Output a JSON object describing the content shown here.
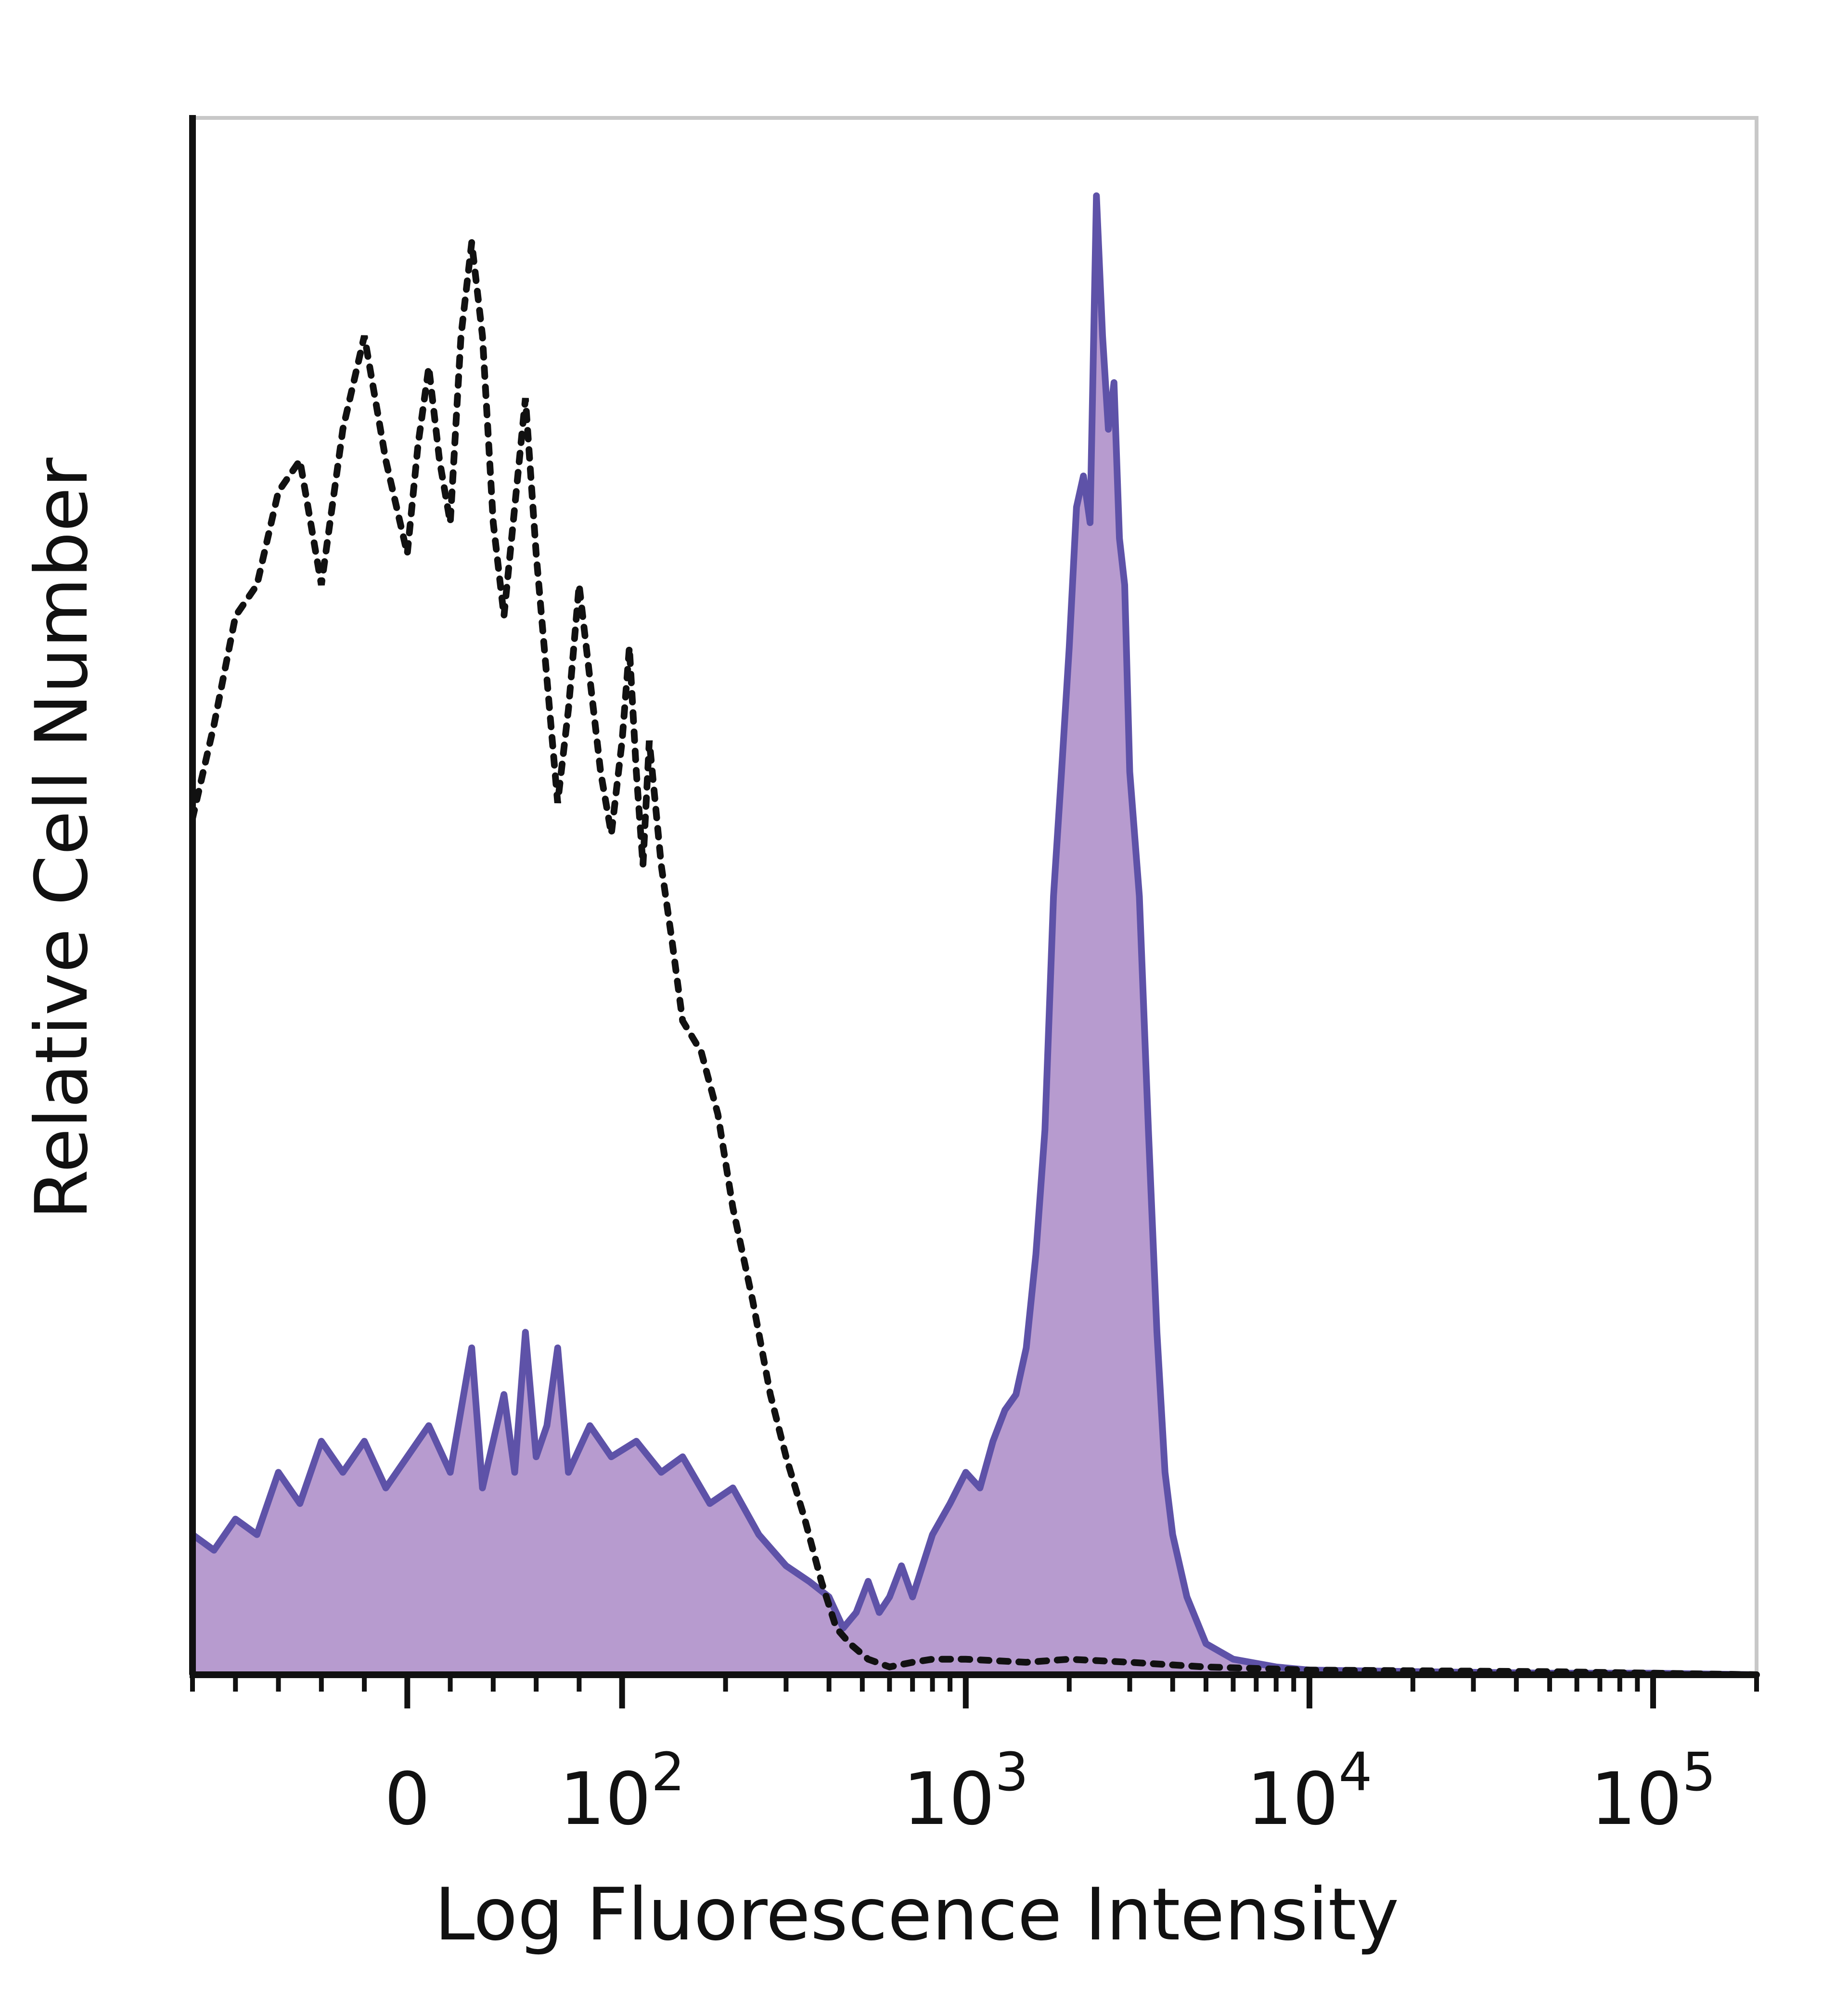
{
  "chart_data": {
    "type": "area",
    "title": "",
    "xlabel": "Log Fluorescence Intensity",
    "ylabel": "Relative Cell Number",
    "x_scale": "biexponential",
    "xlim": [
      -100,
      200000
    ],
    "ylim": [
      0,
      100
    ],
    "grid": false,
    "legend": "none",
    "x_ticks": [
      {
        "value": 0,
        "base": "0",
        "exp": ""
      },
      {
        "value": 100,
        "base": "10",
        "exp": "2"
      },
      {
        "value": 1000,
        "base": "10",
        "exp": "3"
      },
      {
        "value": 10000,
        "base": "10",
        "exp": "4"
      },
      {
        "value": 100000,
        "base": "10",
        "exp": "5"
      }
    ],
    "colors": {
      "stained_line": "#5E52A8",
      "stained_fill": "#B79BCF",
      "control_line": "#111111",
      "axis": "#111111",
      "frame": "#C8C8C8"
    },
    "series": [
      {
        "style": "filled-solid",
        "points": [
          [
            -100,
            9
          ],
          [
            -90,
            8
          ],
          [
            -80,
            10
          ],
          [
            -70,
            9
          ],
          [
            -60,
            13
          ],
          [
            -50,
            11
          ],
          [
            -40,
            15
          ],
          [
            -30,
            13
          ],
          [
            -20,
            15
          ],
          [
            -10,
            12
          ],
          [
            0,
            14
          ],
          [
            10,
            16
          ],
          [
            20,
            13
          ],
          [
            30,
            21
          ],
          [
            35,
            12
          ],
          [
            40,
            15
          ],
          [
            45,
            18
          ],
          [
            50,
            13
          ],
          [
            55,
            22
          ],
          [
            60,
            14
          ],
          [
            65,
            16
          ],
          [
            70,
            21
          ],
          [
            75,
            13
          ],
          [
            85,
            16
          ],
          [
            95,
            14
          ],
          [
            110,
            15
          ],
          [
            130,
            13
          ],
          [
            150,
            14
          ],
          [
            180,
            11
          ],
          [
            210,
            12
          ],
          [
            250,
            9
          ],
          [
            300,
            7
          ],
          [
            350,
            6
          ],
          [
            400,
            5
          ],
          [
            440,
            3
          ],
          [
            480,
            4
          ],
          [
            520,
            6
          ],
          [
            560,
            4
          ],
          [
            600,
            5
          ],
          [
            650,
            7
          ],
          [
            700,
            5
          ],
          [
            800,
            9
          ],
          [
            900,
            11
          ],
          [
            1000,
            13
          ],
          [
            1100,
            12
          ],
          [
            1200,
            15
          ],
          [
            1300,
            17
          ],
          [
            1400,
            18
          ],
          [
            1500,
            21
          ],
          [
            1600,
            27
          ],
          [
            1700,
            35
          ],
          [
            1800,
            50
          ],
          [
            1900,
            58
          ],
          [
            2000,
            66
          ],
          [
            2100,
            75
          ],
          [
            2200,
            77
          ],
          [
            2300,
            74
          ],
          [
            2400,
            95
          ],
          [
            2500,
            86
          ],
          [
            2600,
            80
          ],
          [
            2700,
            83
          ],
          [
            2800,
            73
          ],
          [
            2900,
            70
          ],
          [
            3000,
            58
          ],
          [
            3200,
            50
          ],
          [
            3400,
            35
          ],
          [
            3600,
            22
          ],
          [
            3800,
            13
          ],
          [
            4000,
            9
          ],
          [
            4400,
            5
          ],
          [
            5000,
            2
          ],
          [
            6000,
            1
          ],
          [
            8000,
            0.5
          ],
          [
            10000,
            0.3
          ],
          [
            20000,
            0.2
          ],
          [
            50000,
            0.1
          ],
          [
            100000,
            0.1
          ],
          [
            200000,
            0
          ]
        ]
      },
      {
        "style": "dotted",
        "points": [
          [
            -100,
            55
          ],
          [
            -90,
            61
          ],
          [
            -80,
            68
          ],
          [
            -70,
            70
          ],
          [
            -60,
            76
          ],
          [
            -50,
            78
          ],
          [
            -40,
            70
          ],
          [
            -30,
            80
          ],
          [
            -20,
            86
          ],
          [
            -10,
            78
          ],
          [
            0,
            72
          ],
          [
            5,
            79
          ],
          [
            10,
            84
          ],
          [
            15,
            78
          ],
          [
            20,
            74
          ],
          [
            25,
            86
          ],
          [
            30,
            92
          ],
          [
            35,
            86
          ],
          [
            40,
            74
          ],
          [
            45,
            68
          ],
          [
            50,
            75
          ],
          [
            55,
            82
          ],
          [
            60,
            72
          ],
          [
            65,
            64
          ],
          [
            70,
            56
          ],
          [
            75,
            62
          ],
          [
            80,
            70
          ],
          [
            85,
            64
          ],
          [
            90,
            58
          ],
          [
            95,
            54
          ],
          [
            100,
            60
          ],
          [
            105,
            66
          ],
          [
            110,
            58
          ],
          [
            115,
            52
          ],
          [
            120,
            60
          ],
          [
            130,
            52
          ],
          [
            140,
            47
          ],
          [
            150,
            42
          ],
          [
            170,
            40
          ],
          [
            190,
            36
          ],
          [
            210,
            30
          ],
          [
            240,
            24
          ],
          [
            270,
            18
          ],
          [
            300,
            14
          ],
          [
            340,
            10
          ],
          [
            380,
            6
          ],
          [
            420,
            3
          ],
          [
            460,
            2
          ],
          [
            520,
            1
          ],
          [
            600,
            0.5
          ],
          [
            700,
            0.8
          ],
          [
            800,
            1
          ],
          [
            1000,
            1
          ],
          [
            1500,
            0.8
          ],
          [
            2000,
            1
          ],
          [
            3000,
            0.8
          ],
          [
            5000,
            0.5
          ],
          [
            10000,
            0.3
          ],
          [
            50000,
            0.2
          ],
          [
            200000,
            0
          ]
        ]
      }
    ]
  }
}
